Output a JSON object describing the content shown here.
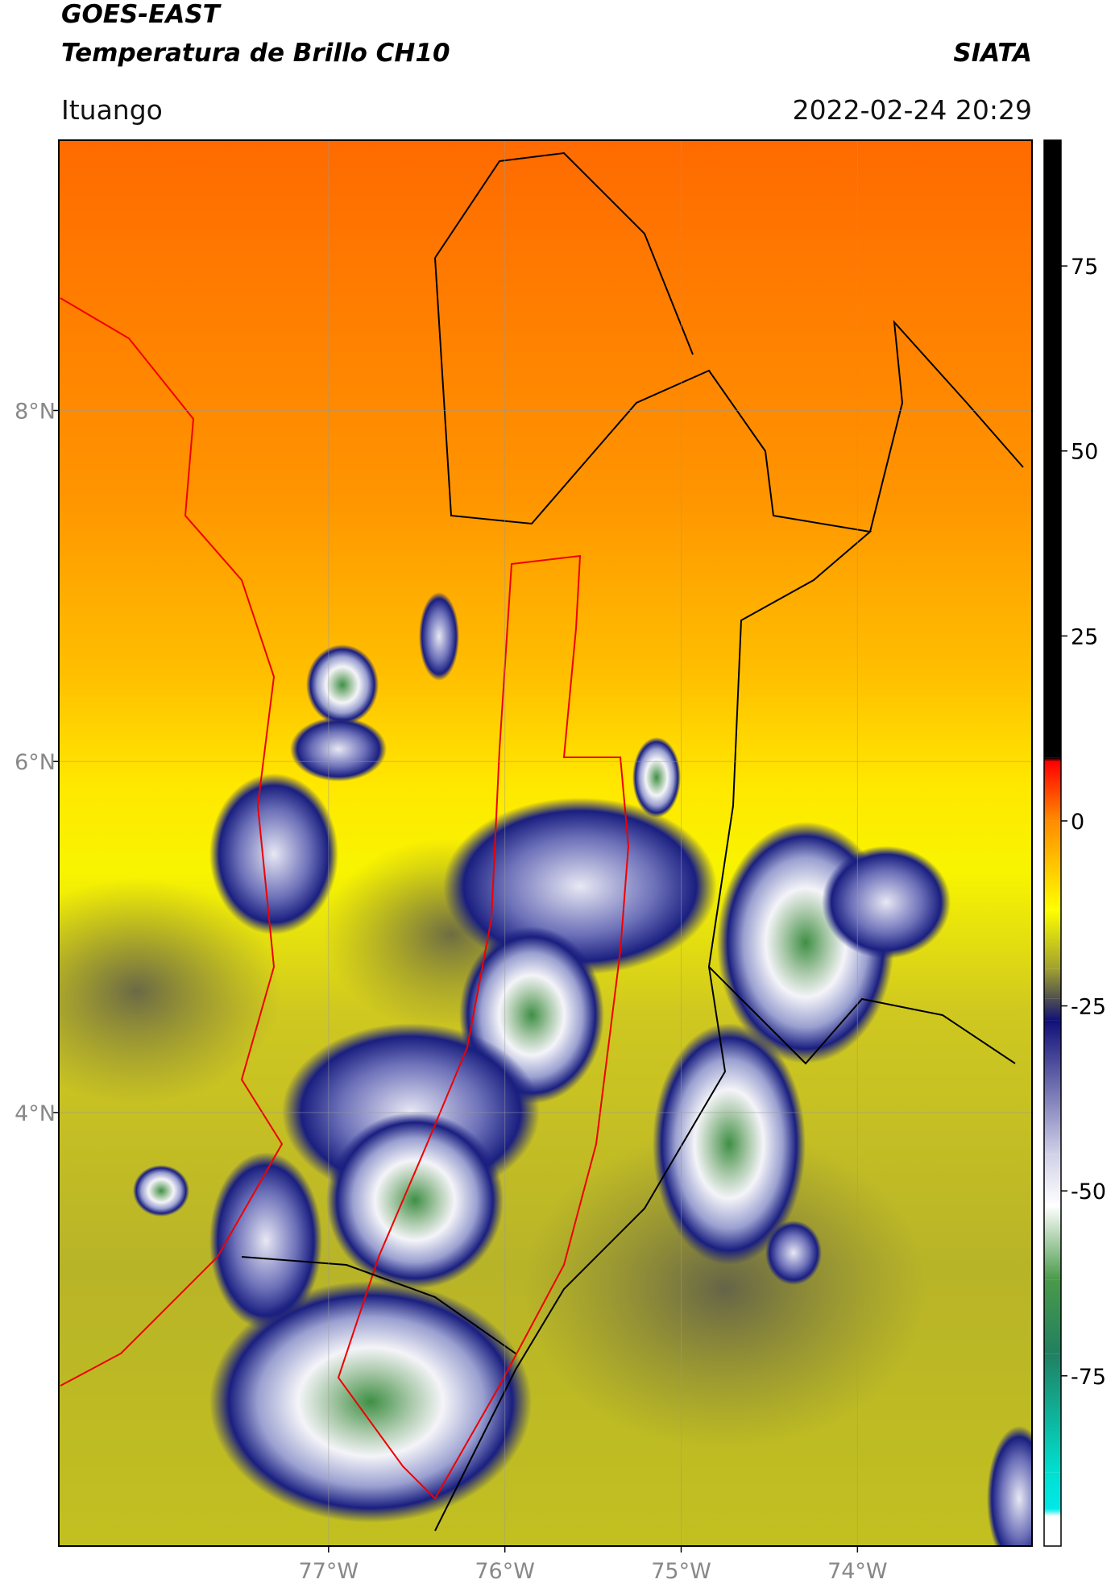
{
  "header": {
    "title": "GOES-EAST",
    "subtitle": "Temperatura de Brillo CH10",
    "org": "SIATA",
    "location": "Ituango",
    "datetime": "2022-02-24 20:29"
  },
  "map": {
    "xlim": [
      -78.53,
      -73.01
    ],
    "ylim": [
      1.53,
      9.54
    ],
    "xticks": [
      {
        "value": -77,
        "label": "77°W"
      },
      {
        "value": -76,
        "label": "76°W"
      },
      {
        "value": -75,
        "label": "75°W"
      },
      {
        "value": -74,
        "label": "74°W"
      }
    ],
    "yticks": [
      {
        "value": 8,
        "label": "8°N"
      },
      {
        "value": 6,
        "label": "6°N"
      },
      {
        "value": 4,
        "label": "4°N"
      }
    ],
    "grid": true
  },
  "colorbar": {
    "lim": [
      -98,
      92
    ],
    "ticks": [
      75,
      50,
      25,
      0,
      -25,
      -50,
      -75
    ],
    "stops": [
      {
        "value": 92,
        "color": "#000000"
      },
      {
        "value": 8.5,
        "color": "#000000"
      },
      {
        "value": 8,
        "color": "#ff0000"
      },
      {
        "value": 0,
        "color": "#ff8c00"
      },
      {
        "value": -12,
        "color": "#ffff00"
      },
      {
        "value": -20,
        "color": "#a0a030"
      },
      {
        "value": -24,
        "color": "#505050"
      },
      {
        "value": -27,
        "color": "#10107a"
      },
      {
        "value": -45,
        "color": "#d0d0e8"
      },
      {
        "value": -52,
        "color": "#ffffff"
      },
      {
        "value": -62,
        "color": "#4a9a4a"
      },
      {
        "value": -72,
        "color": "#208060"
      },
      {
        "value": -88,
        "color": "#00e0d0"
      },
      {
        "value": -93,
        "color": "#00e8e8"
      },
      {
        "value": -94,
        "color": "#ffffff"
      },
      {
        "value": -98,
        "color": "#ffffff"
      }
    ]
  }
}
